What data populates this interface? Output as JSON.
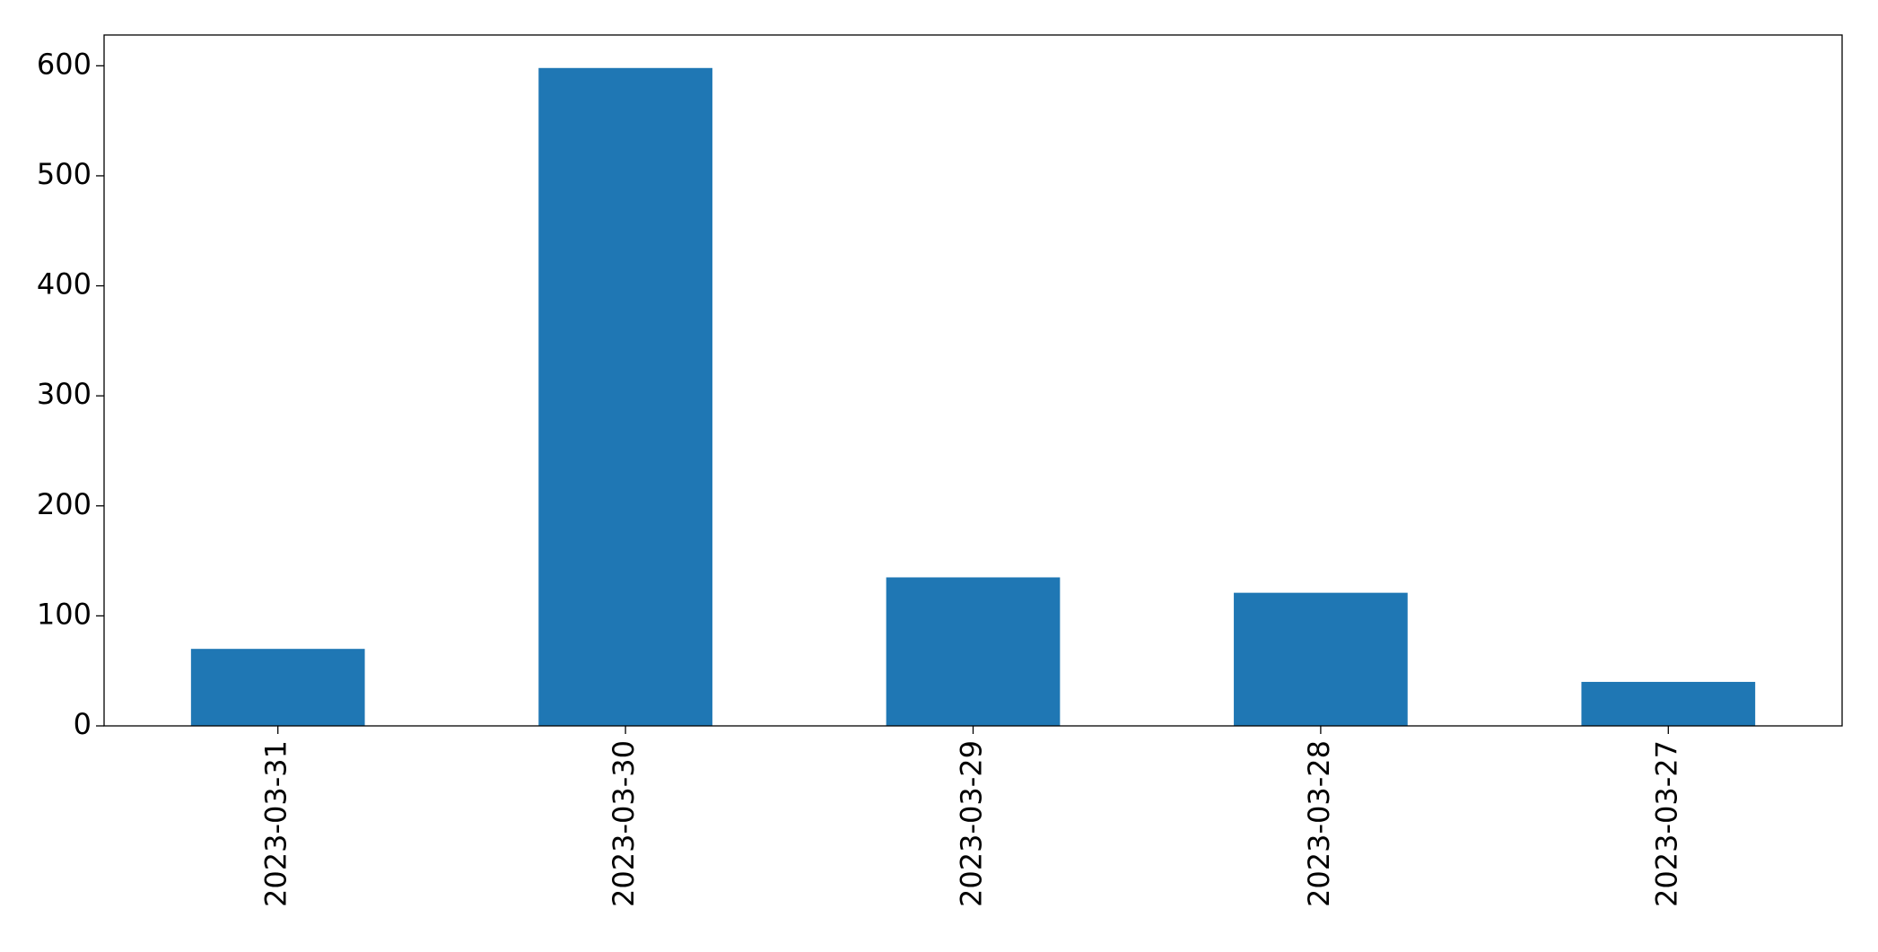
{
  "chart_data": {
    "type": "bar",
    "categories": [
      "2023-03-31",
      "2023-03-30",
      "2023-03-29",
      "2023-03-28",
      "2023-03-27"
    ],
    "values": [
      70,
      598,
      135,
      121,
      40
    ],
    "color": "#1f77b4",
    "ylim": [
      0,
      628
    ],
    "yticks": [
      0,
      100,
      200,
      300,
      400,
      500,
      600
    ]
  }
}
